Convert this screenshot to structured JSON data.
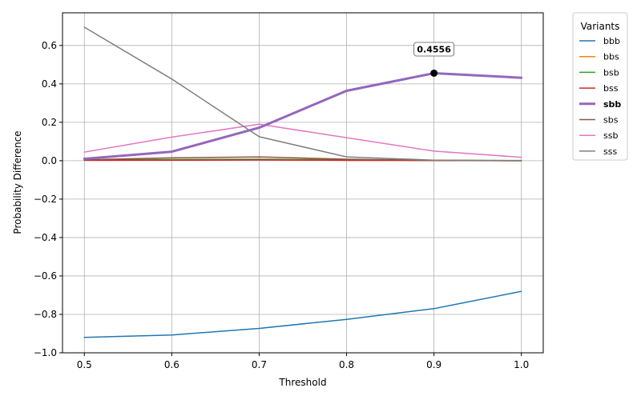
{
  "chart_data": {
    "type": "line",
    "title": "",
    "xlabel": "Threshold",
    "ylabel": "Probability Difference",
    "x": [
      0.5,
      0.6,
      0.7,
      0.8,
      0.9,
      1.0
    ],
    "xlim": [
      0.475,
      1.025
    ],
    "ylim": [
      -1.0,
      0.77
    ],
    "x_ticks": [
      "0.5",
      "0.6",
      "0.7",
      "0.8",
      "0.9",
      "1.0"
    ],
    "y_ticks": [
      "0.6",
      "0.4",
      "0.2",
      "0.0",
      "−0.2",
      "−0.4",
      "−0.6",
      "−0.8",
      "−1.0"
    ],
    "y_tick_values": [
      0.6,
      0.4,
      0.2,
      0.0,
      -0.2,
      -0.4,
      -0.6,
      -0.8,
      -1.0
    ],
    "grid": true,
    "legend_title": "Variants",
    "legend_position": "outside-right",
    "highlighted_series": "sbb",
    "series": [
      {
        "name": "bbb",
        "color": "#1f77b4",
        "values": [
          -0.92,
          -0.907,
          -0.873,
          -0.826,
          -0.77,
          -0.68
        ]
      },
      {
        "name": "bbs",
        "color": "#ff7f0e",
        "values": [
          0.003,
          0.004,
          0.005,
          0.002,
          0.001,
          0.0
        ]
      },
      {
        "name": "bsb",
        "color": "#2ca02c",
        "values": [
          0.004,
          0.006,
          0.008,
          0.005,
          0.002,
          0.001
        ]
      },
      {
        "name": "bss",
        "color": "#d62728",
        "values": [
          0.002,
          0.003,
          0.004,
          0.002,
          0.001,
          0.0
        ]
      },
      {
        "name": "sbb",
        "color": "#9467bd",
        "values": [
          0.01,
          0.047,
          0.172,
          0.364,
          0.4556,
          0.432
        ]
      },
      {
        "name": "sbs",
        "color": "#8c564b",
        "values": [
          0.005,
          0.015,
          0.02,
          0.008,
          0.002,
          0.0
        ]
      },
      {
        "name": "ssb",
        "color": "#e377c2",
        "values": [
          0.045,
          0.123,
          0.19,
          0.12,
          0.05,
          0.018
        ]
      },
      {
        "name": "sss",
        "color": "#7f7f7f",
        "values": [
          0.695,
          0.425,
          0.125,
          0.02,
          0.003,
          0.0
        ]
      }
    ],
    "annotation": {
      "label": "0.4556",
      "x": 0.9,
      "y": 0.4556
    }
  }
}
